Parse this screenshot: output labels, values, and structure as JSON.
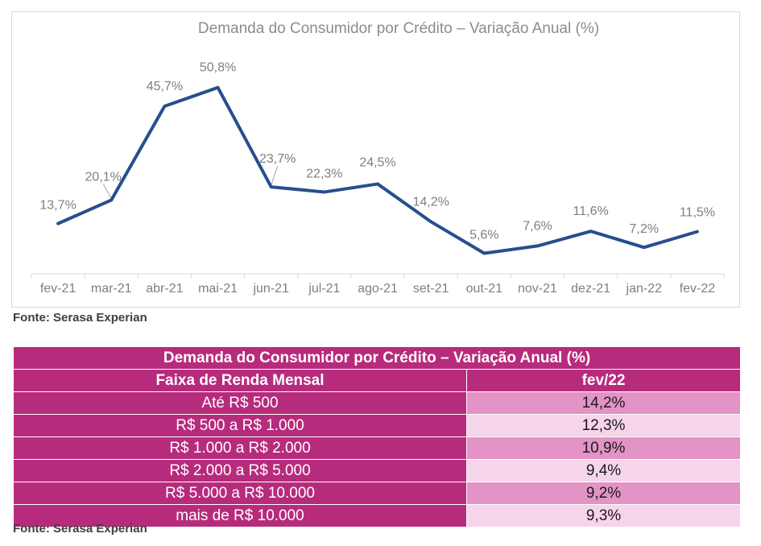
{
  "colors": {
    "line": "#264f8d",
    "table_header": "#b72b7c",
    "table_value_dark": "#e393c5",
    "table_value_light": "#f6d4e9"
  },
  "chart_data": {
    "type": "line",
    "title": "Demanda do Consumidor por Crédito – Variação Anual (%)",
    "categories": [
      "fev-21",
      "mar-21",
      "abr-21",
      "mai-21",
      "jun-21",
      "jul-21",
      "ago-21",
      "set-21",
      "out-21",
      "nov-21",
      "dez-21",
      "jan-22",
      "fev-22"
    ],
    "values": [
      13.7,
      20.1,
      45.7,
      50.8,
      23.7,
      22.3,
      24.5,
      14.2,
      5.6,
      7.6,
      11.6,
      7.2,
      11.5
    ],
    "data_labels": [
      "13,7%",
      "20,1%",
      "45,7%",
      "50,8%",
      "23,7%",
      "22,3%",
      "24,5%",
      "14,2%",
      "5,6%",
      "7,6%",
      "11,6%",
      "7,2%",
      "11,5%"
    ],
    "ylim": [
      0,
      56
    ],
    "grid": false,
    "legend": "none"
  },
  "source_1": "Fonte: Serasa Experian",
  "table": {
    "title": "Demanda do Consumidor por Crédito – Variação Anual (%)",
    "col_label": "Faixa de Renda Mensal",
    "col_value": "fev/22",
    "rows": [
      {
        "label": "Até R$ 500",
        "value": "14,2%"
      },
      {
        "label": "R$ 500 a R$ 1.000",
        "value": "12,3%"
      },
      {
        "label": "R$ 1.000 a R$ 2.000",
        "value": "10,9%"
      },
      {
        "label": "R$ 2.000 a R$ 5.000",
        "value": "9,4%"
      },
      {
        "label": "R$ 5.000 a R$ 10.000",
        "value": "9,2%"
      },
      {
        "label": "mais de R$ 10.000",
        "value": "9,3%"
      }
    ]
  },
  "source_2": "Fonte: Serasa Experian"
}
